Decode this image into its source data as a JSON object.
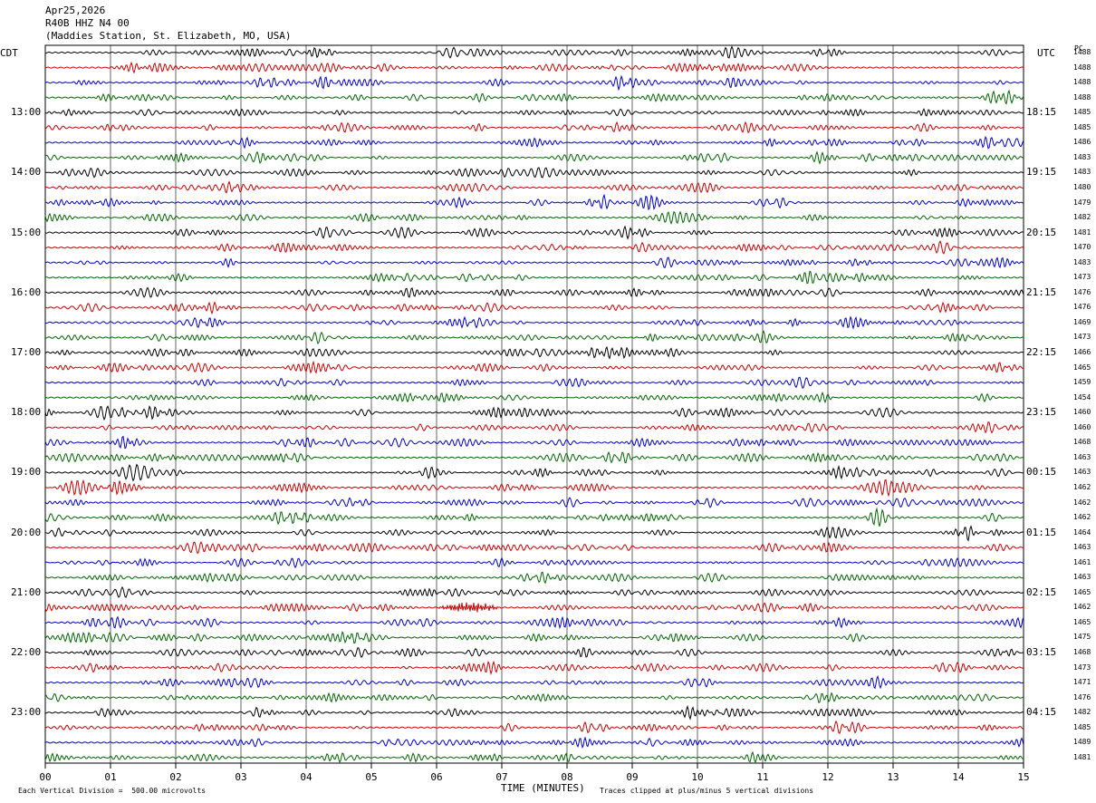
{
  "header": {
    "date": "Apr25,2026",
    "station_code": "R40B HHZ N4 00",
    "station_name": "(Maddies Station, St. Elizabeth, MO, USA)"
  },
  "left_tz": "CDT",
  "right_tz": "UTC",
  "pc_label": "PC",
  "chart_data": {
    "type": "line",
    "title": "",
    "xlabel": "TIME (MINUTES)",
    "x_ticks": [
      "00",
      "01",
      "02",
      "03",
      "04",
      "05",
      "06",
      "07",
      "08",
      "09",
      "10",
      "11",
      "12",
      "13",
      "14",
      "15"
    ],
    "xlim": [
      0,
      15
    ],
    "trace_colors": [
      "#000000",
      "#cc0000",
      "#0000cc",
      "#006600"
    ],
    "left_hour_labels": [
      "13:00",
      "14:00",
      "15:00",
      "16:00",
      "17:00",
      "18:00",
      "19:00",
      "20:00",
      "21:00",
      "22:00",
      "23:00"
    ],
    "right_hour_labels": [
      "18:15",
      "19:15",
      "20:15",
      "21:15",
      "22:15",
      "23:15",
      "00:15",
      "01:15",
      "02:15",
      "03:15",
      "04:15"
    ],
    "trace_values": [
      1488,
      1488,
      1488,
      1488,
      1485,
      1485,
      1486,
      1483,
      1483,
      1480,
      1479,
      1482,
      1481,
      1470,
      1483,
      1473,
      1476,
      1476,
      1469,
      1473,
      1466,
      1465,
      1459,
      1454,
      1460,
      1460,
      1468,
      1463,
      1463,
      1462,
      1462,
      1462,
      1464,
      1463,
      1461,
      1463,
      1465,
      1462,
      1465,
      1475,
      1468,
      1473,
      1471,
      1476,
      1482,
      1485,
      1489,
      1481
    ],
    "event": {
      "trace_index": 37,
      "minute_start": 6.0,
      "minute_end": 7.0
    }
  },
  "footer": {
    "scale_note": "Each Vertical Division =  500.00 microvolts",
    "clip_note": "Traces clipped at plus/minus 5 vertical divisions"
  }
}
